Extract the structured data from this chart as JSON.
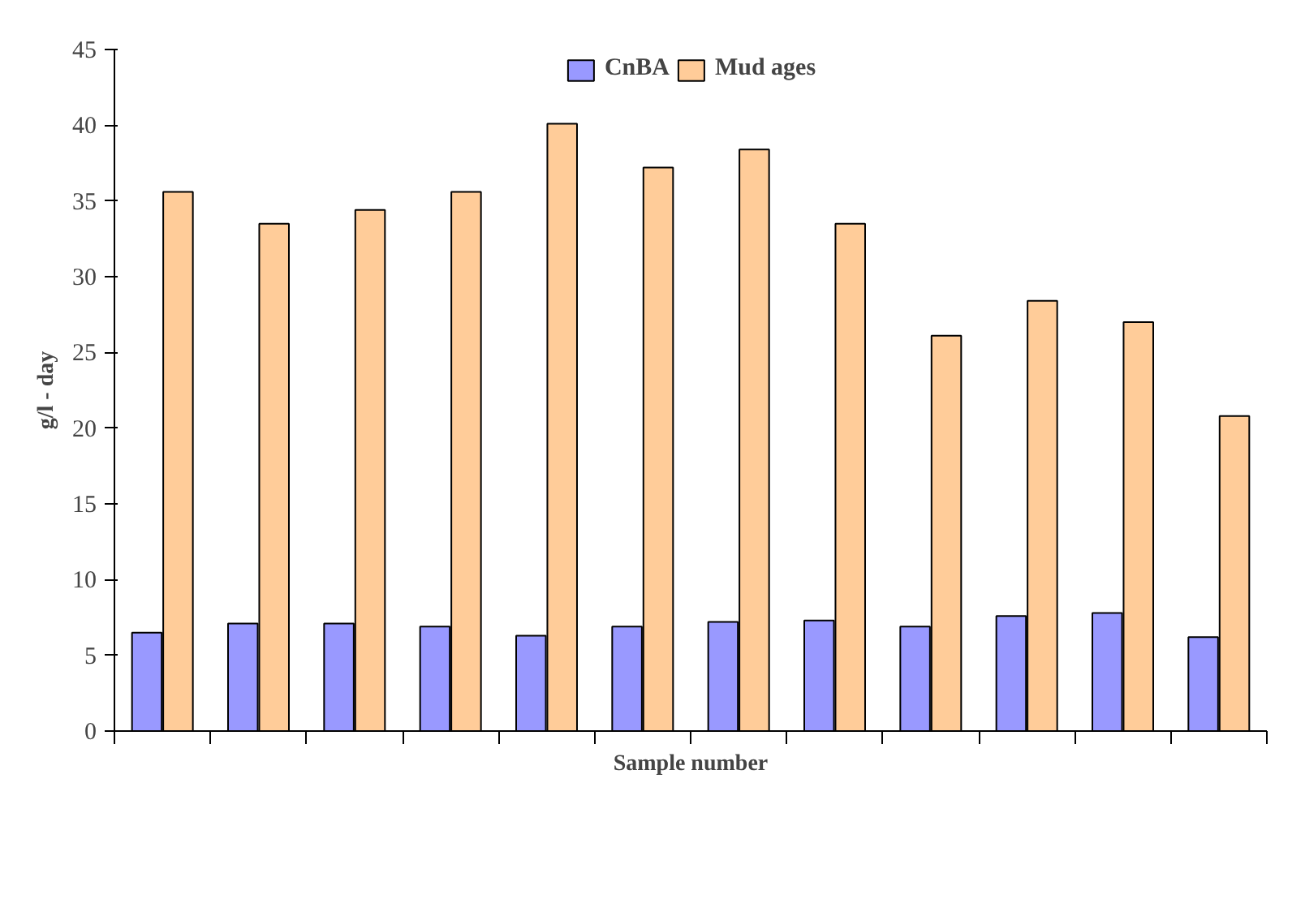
{
  "chart_data": {
    "type": "bar",
    "xlabel": "Sample number",
    "ylabel": "g/l - day",
    "categories": [
      null,
      null,
      null,
      null,
      null,
      null,
      null,
      null,
      null,
      null,
      null,
      null
    ],
    "series": [
      {
        "name": "CnBA",
        "color": "#9999ff",
        "values": [
          6.5,
          7.1,
          7.1,
          6.9,
          6.3,
          6.9,
          7.2,
          7.3,
          6.9,
          7.6,
          7.8,
          6.2
        ]
      },
      {
        "name": "Mud ages",
        "color": "#ffcc99",
        "values": [
          35.6,
          33.5,
          34.4,
          35.6,
          40.1,
          37.2,
          38.4,
          33.5,
          26.1,
          28.4,
          27.0,
          20.8
        ]
      }
    ],
    "ylim": [
      0,
      45
    ],
    "yticks": [
      0,
      5,
      10,
      15,
      20,
      25,
      30,
      35,
      40,
      45
    ],
    "grid": false,
    "legend": "top",
    "tick_labels": "y"
  }
}
